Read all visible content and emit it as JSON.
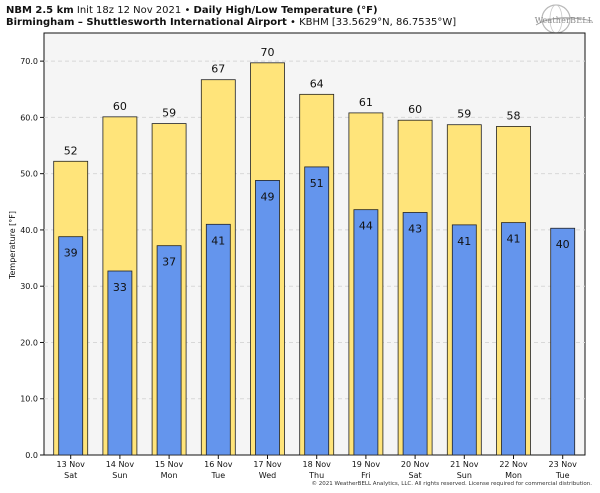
{
  "header": {
    "model": "NBM 2.5 km",
    "init": "Init 18z 12 Nov 2021",
    "title": "Daily High/Low Temperature (°F)",
    "location": "Birmingham – Shuttlesworth International Airport",
    "station": "KBHM [33.5629°N, 86.7535°W]"
  },
  "logo": {
    "text": "WeatherBELL",
    "icon": "globe-logo-icon"
  },
  "copyright": "© 2021 WeatherBELL Analytics, LLC. All rights reserved. License required for commercial distribution.",
  "colors": {
    "high": "#ffe47a",
    "low": "#6495ed",
    "plot_bg": "#f5f5f5",
    "grid": "#d8d8d8"
  },
  "chart_data": {
    "type": "bar",
    "title": "Daily High/Low Temperature (°F)",
    "ylabel": "Temperature [°F]",
    "ylim": [
      0,
      75
    ],
    "yticks": [
      0,
      10,
      20,
      30,
      40,
      50,
      60,
      70
    ],
    "ytick_labels": [
      "0.0",
      "10.0",
      "20.0",
      "30.0",
      "40.0",
      "50.0",
      "60.0",
      "70.0"
    ],
    "grid": true,
    "categories": [
      {
        "date": "13 Nov",
        "day": "Sat"
      },
      {
        "date": "14 Nov",
        "day": "Sun"
      },
      {
        "date": "15 Nov",
        "day": "Mon"
      },
      {
        "date": "16 Nov",
        "day": "Tue"
      },
      {
        "date": "17 Nov",
        "day": "Wed"
      },
      {
        "date": "18 Nov",
        "day": "Thu"
      },
      {
        "date": "19 Nov",
        "day": "Fri"
      },
      {
        "date": "20 Nov",
        "day": "Sat"
      },
      {
        "date": "21 Nov",
        "day": "Sun"
      },
      {
        "date": "22 Nov",
        "day": "Mon"
      },
      {
        "date": "23 Nov",
        "day": "Tue"
      }
    ],
    "series": [
      {
        "values": [
          52,
          60,
          59,
          67,
          70,
          64,
          61,
          60,
          59,
          58,
          null
        ]
      },
      {
        "values": [
          39,
          33,
          37,
          41,
          49,
          51,
          44,
          43,
          41,
          41,
          40
        ]
      }
    ],
    "bar_heights": {
      "high": [
        52.2,
        60.1,
        58.9,
        66.7,
        69.7,
        64.1,
        60.8,
        59.5,
        58.7,
        58.4,
        null
      ],
      "low": [
        38.8,
        32.7,
        37.2,
        41.0,
        48.8,
        51.2,
        43.6,
        43.1,
        40.9,
        41.3,
        40.3
      ]
    }
  }
}
